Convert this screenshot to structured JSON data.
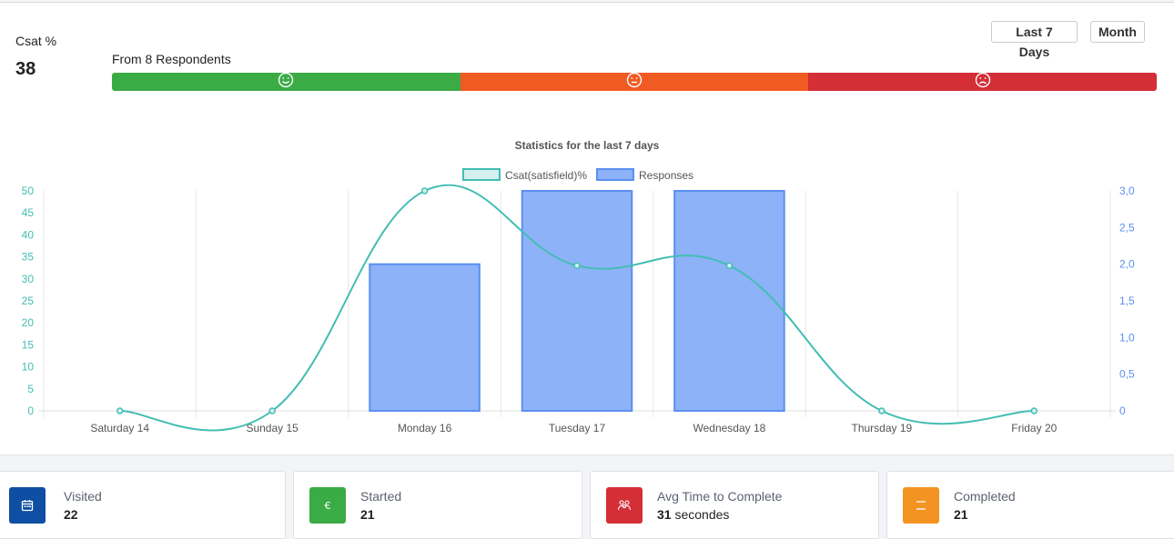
{
  "summary": {
    "csat_label": "Csat %",
    "csat_value": "38",
    "respondents_text": "From 8 Respondents"
  },
  "range_buttons": {
    "last7_label": "Last 7 Days",
    "month_label": "Month"
  },
  "satisfaction_bar": [
    {
      "name": "satisfied",
      "icon": "smile-icon",
      "color": "#3bab45"
    },
    {
      "name": "neutral",
      "icon": "neutral-face-icon",
      "color": "#f05a23"
    },
    {
      "name": "dissatisfied",
      "icon": "frown-icon",
      "color": "#d42e37"
    }
  ],
  "chart_data": {
    "type": "bar",
    "title": "Statistics for the last 7 days",
    "categories": [
      "Saturday 14",
      "Sunday 15",
      "Monday 16",
      "Tuesday 17",
      "Wednesday 18",
      "Thursday 19",
      "Friday 20"
    ],
    "series": [
      {
        "name": "Csat(satisfield)%",
        "type": "line",
        "axis": "left",
        "values": [
          0,
          0,
          50,
          33,
          33,
          0,
          0
        ],
        "color": "#43bdb3"
      },
      {
        "name": "Responses",
        "type": "bar",
        "axis": "right",
        "values": [
          0,
          0,
          2,
          3,
          3,
          0,
          0
        ],
        "color": "#8db2f8"
      }
    ],
    "y_left": {
      "range": [
        0,
        50
      ],
      "ticks": [
        "0",
        "5",
        "10",
        "15",
        "20",
        "25",
        "30",
        "35",
        "40",
        "45",
        "50"
      ],
      "color": "#43bdb3"
    },
    "y_right": {
      "range": [
        0,
        3
      ],
      "ticks": [
        "0",
        "0,5",
        "1,0",
        "1,5",
        "2,0",
        "2,5",
        "3,0"
      ],
      "color": "#5b8ff0"
    },
    "legend_position": "top",
    "grid": true
  },
  "stat_cards": [
    {
      "title": "Visited",
      "value": "22",
      "suffix": "",
      "icon": "calendar-icon",
      "color": "#0e4fa3"
    },
    {
      "title": "Started",
      "value": "21",
      "suffix": "",
      "icon": "euro-icon",
      "color": "#3bab45"
    },
    {
      "title": "Avg Time to Complete",
      "value": "31",
      "suffix": " secondes",
      "icon": "users-icon",
      "color": "#d42e37"
    },
    {
      "title": "Completed",
      "value": "21",
      "suffix": "",
      "icon": "minus-lines-icon",
      "color": "#f39321"
    }
  ]
}
